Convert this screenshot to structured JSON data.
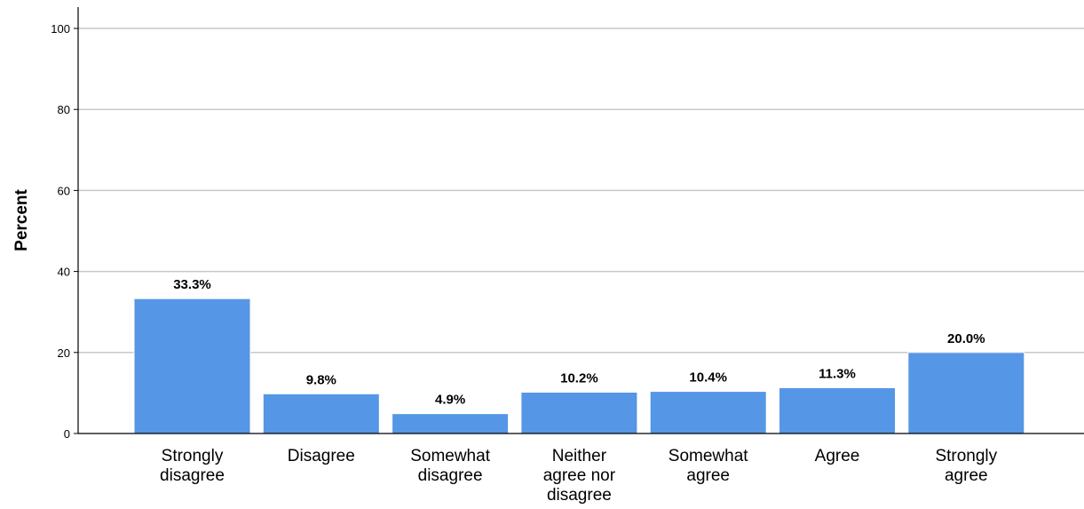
{
  "chart_data": {
    "type": "bar",
    "categories": [
      [
        "Strongly",
        "disagree"
      ],
      [
        "Disagree"
      ],
      [
        "Somewhat",
        "disagree"
      ],
      [
        "Neither",
        "agree nor",
        "disagree"
      ],
      [
        "Somewhat",
        "agree"
      ],
      [
        "Agree"
      ],
      [
        "Strongly",
        "agree"
      ]
    ],
    "values": [
      33.3,
      9.8,
      4.9,
      10.2,
      10.4,
      11.3,
      20.0
    ],
    "data_labels": [
      "33.3%",
      "9.8%",
      "4.9%",
      "10.2%",
      "10.4%",
      "11.3%",
      "20.0%"
    ],
    "ylabel": "Percent",
    "xlabel": "",
    "ylim": [
      0,
      100
    ],
    "yticks": [
      0,
      20,
      40,
      60,
      80,
      100
    ],
    "grid": true,
    "legend": "none",
    "bar_color": "#5596e6",
    "bar_edge_color": "#ffffff",
    "grid_color": "#c8c8c8",
    "axis_color": "#000000"
  }
}
